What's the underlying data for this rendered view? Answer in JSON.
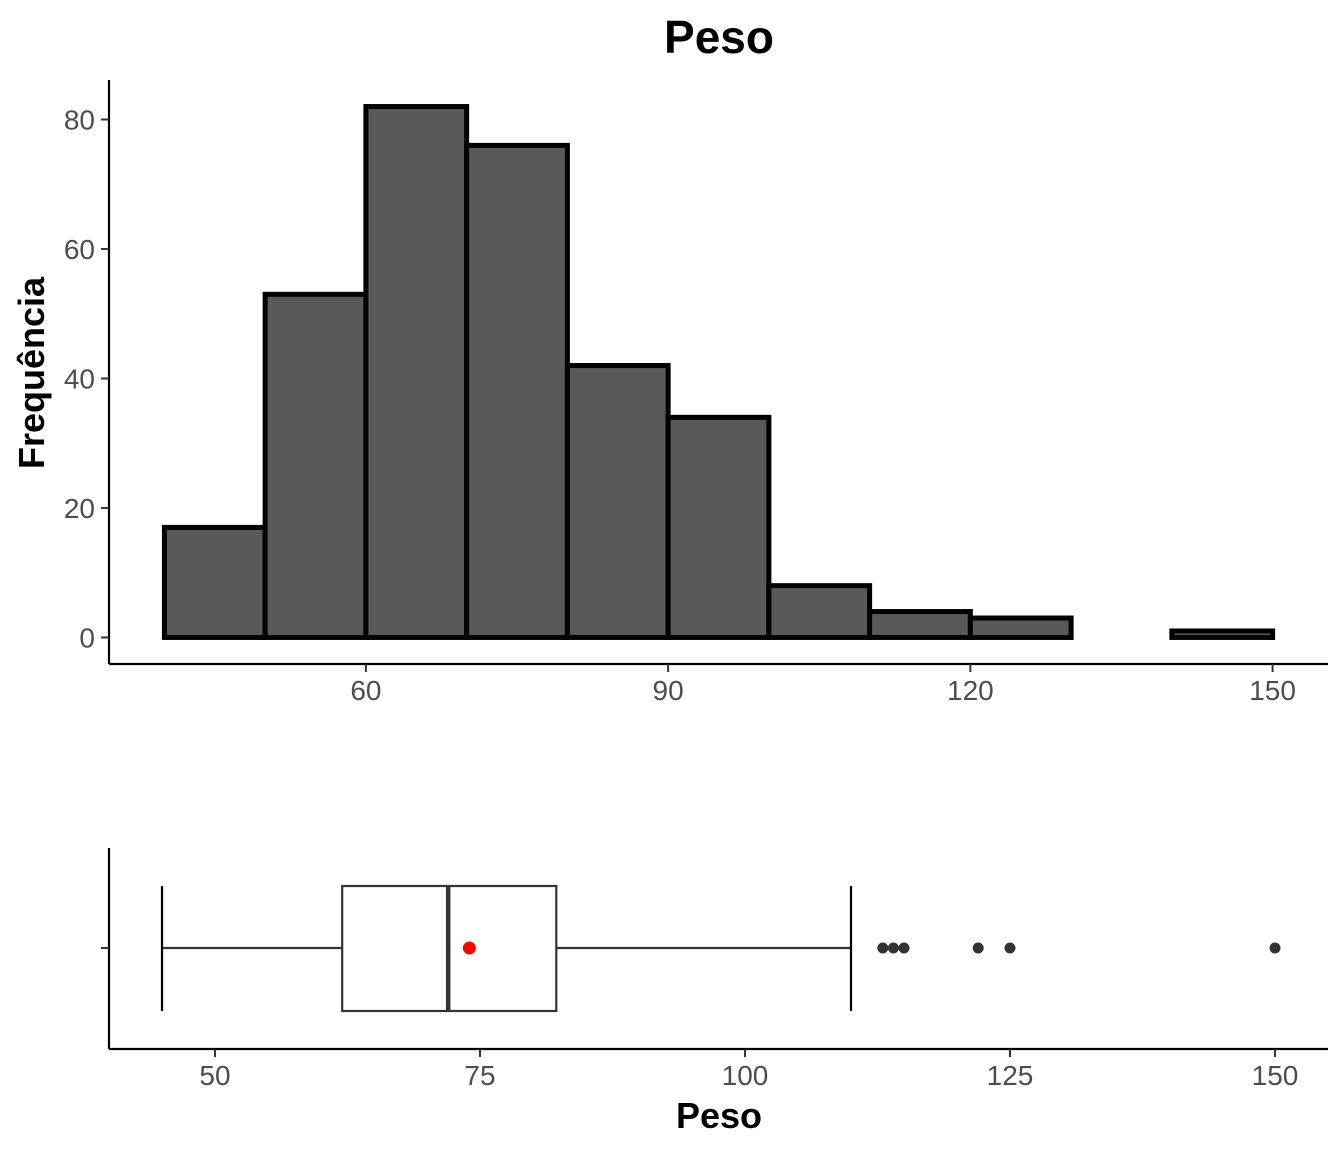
{
  "chart_data": [
    {
      "type": "bar",
      "subtype": "histogram",
      "title": "Peso",
      "xlabel": "",
      "ylabel": "Frequência",
      "bins": [
        {
          "start": 40,
          "end": 50,
          "count": 17
        },
        {
          "start": 50,
          "end": 60,
          "count": 53
        },
        {
          "start": 60,
          "end": 70,
          "count": 82
        },
        {
          "start": 70,
          "end": 80,
          "count": 76
        },
        {
          "start": 80,
          "end": 90,
          "count": 42
        },
        {
          "start": 90,
          "end": 100,
          "count": 34
        },
        {
          "start": 100,
          "end": 110,
          "count": 8
        },
        {
          "start": 110,
          "end": 120,
          "count": 4
        },
        {
          "start": 120,
          "end": 130,
          "count": 3
        },
        {
          "start": 130,
          "end": 140,
          "count": 0
        },
        {
          "start": 140,
          "end": 150,
          "count": 1
        }
      ],
      "xlim": [
        34.5,
        155.5
      ],
      "ylim": [
        -4.1,
        86.1
      ],
      "xticks": [
        "60",
        "90",
        "120",
        "150"
      ],
      "yticks": [
        "0",
        "20",
        "40",
        "60",
        "80"
      ],
      "fill_color": "#595959",
      "border_color": "#000000",
      "grid": false
    },
    {
      "type": "boxplot",
      "xlabel": "Peso",
      "ylabel": "",
      "whisker_low": 45,
      "q1": 62,
      "median": 72,
      "q3": 82.2,
      "whisker_high": 110,
      "mean": 74,
      "outliers": [
        113,
        114,
        115,
        122,
        125,
        150
      ],
      "xlim": [
        40,
        155
      ],
      "xticks": [
        "50",
        "75",
        "100",
        "125",
        "150"
      ],
      "box_color": "#333333",
      "mean_color": "#ff0000",
      "outlier_color": "#333333",
      "grid": false
    }
  ]
}
